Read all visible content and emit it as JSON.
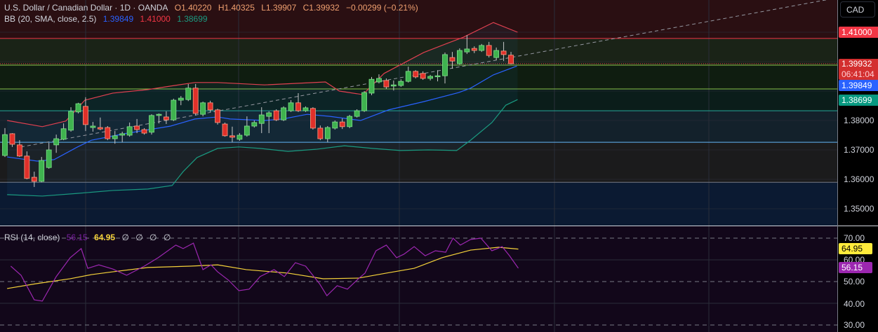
{
  "header": {
    "symbol": "U.S. Dollar / Canadian Dollar · 1D · OANDA",
    "open": "O1.40220",
    "high": "H1.40325",
    "low": "L1.39907",
    "close": "C1.39932",
    "change": "−0.00299 (−0.21%)"
  },
  "bb": {
    "label": "BB (20, SMA, close, 2.5)",
    "basis": "1.39849",
    "upper": "1.41000",
    "lower": "1.38699"
  },
  "rsi": {
    "label": "RSI (14, close)",
    "value": "56.15",
    "ma": "64.95",
    "extra": [
      "∅",
      "∅",
      "∅",
      "∅"
    ]
  },
  "currency_button": "CAD",
  "price_axis": {
    "ticks": [
      "1.35000",
      "1.36000",
      "1.37000",
      "1.38000"
    ],
    "tag_upper": "1.41000",
    "tag_last": "1.39932",
    "countdown": "06:41:04",
    "tag_basis": "1.39849",
    "tag_lower": "1.38699"
  },
  "rsi_axis": {
    "ticks": [
      "70.00",
      "60.00",
      "50.00",
      "40.00",
      "30.00"
    ],
    "tag_ma": "64.95",
    "tag_rsi": "56.15"
  },
  "colors": {
    "up": "#3fb34f",
    "down": "#e0302a",
    "upper": "#e04050",
    "basis": "#2962ff",
    "lower": "#1a9a80",
    "rsi": "#9c27b0",
    "rsi_ma": "#f5d23a"
  },
  "chart_data": [
    {
      "type": "candlestick",
      "title": "U.S. Dollar / Canadian Dollar · 1D · OANDA",
      "ylim": [
        1.343,
        1.421
      ],
      "yticks": [
        1.35,
        1.36,
        1.37,
        1.38,
        1.39,
        1.4,
        1.41
      ],
      "candles": [
        [
          1.3681,
          1.3774,
          1.3676,
          1.3752
        ],
        [
          1.3755,
          1.3757,
          1.371,
          1.3719
        ],
        [
          1.3717,
          1.3733,
          1.3676,
          1.3679
        ],
        [
          1.3679,
          1.3695,
          1.36,
          1.3603
        ],
        [
          1.3607,
          1.3626,
          1.3574,
          1.3593
        ],
        [
          1.3593,
          1.3676,
          1.359,
          1.3664
        ],
        [
          1.364,
          1.3724,
          1.3636,
          1.37
        ],
        [
          1.3717,
          1.3752,
          1.369,
          1.3738
        ],
        [
          1.3736,
          1.379,
          1.3733,
          1.3772
        ],
        [
          1.3767,
          1.3845,
          1.3762,
          1.3831
        ],
        [
          1.3829,
          1.386,
          1.3824,
          1.3857
        ],
        [
          1.3848,
          1.3879,
          1.3764,
          1.3786
        ],
        [
          1.3776,
          1.3795,
          1.3762,
          1.3781
        ],
        [
          1.3776,
          1.381,
          1.3767,
          1.3771
        ],
        [
          1.3776,
          1.3781,
          1.3733,
          1.3738
        ],
        [
          1.3738,
          1.3764,
          1.3721,
          1.3748
        ],
        [
          1.375,
          1.3762,
          1.3726,
          1.3755
        ],
        [
          1.375,
          1.3793,
          1.3745,
          1.3779
        ],
        [
          1.3781,
          1.3805,
          1.3757,
          1.3769
        ],
        [
          1.3769,
          1.3774,
          1.3752,
          1.3757
        ],
        [
          1.376,
          1.3821,
          1.3752,
          1.3817
        ],
        [
          1.3817,
          1.3824,
          1.379,
          1.3821
        ],
        [
          1.3812,
          1.3831,
          1.3788,
          1.3802
        ],
        [
          1.3802,
          1.3874,
          1.3798,
          1.3869
        ],
        [
          1.3869,
          1.3883,
          1.3852,
          1.3876
        ],
        [
          1.3871,
          1.3924,
          1.3866,
          1.391
        ],
        [
          1.391,
          1.3924,
          1.3817,
          1.3824
        ],
        [
          1.3821,
          1.3864,
          1.3814,
          1.386
        ],
        [
          1.386,
          1.3867,
          1.3829,
          1.3836
        ],
        [
          1.3836,
          1.384,
          1.3786,
          1.3793
        ],
        [
          1.3788,
          1.3793,
          1.3745,
          1.3748
        ],
        [
          1.3748,
          1.3779,
          1.3726,
          1.3743
        ],
        [
          1.3736,
          1.3757,
          1.3731,
          1.375
        ],
        [
          1.375,
          1.3814,
          1.3745,
          1.3781
        ],
        [
          1.3781,
          1.38,
          1.3776,
          1.3793
        ],
        [
          1.379,
          1.3845,
          1.3757,
          1.3819
        ],
        [
          1.3814,
          1.3831,
          1.3757,
          1.3826
        ],
        [
          1.3833,
          1.3838,
          1.3798,
          1.3802
        ],
        [
          1.3802,
          1.3848,
          1.3798,
          1.3843
        ],
        [
          1.3833,
          1.3869,
          1.3829,
          1.386
        ],
        [
          1.386,
          1.3893,
          1.3829,
          1.3833
        ],
        [
          1.3833,
          1.3848,
          1.3829,
          1.3843
        ],
        [
          1.3841,
          1.3845,
          1.3769,
          1.3774
        ],
        [
          1.3774,
          1.3783,
          1.3733,
          1.3738
        ],
        [
          1.3738,
          1.3781,
          1.3726,
          1.3776
        ],
        [
          1.3774,
          1.38,
          1.3769,
          1.3795
        ],
        [
          1.3795,
          1.3807,
          1.3771,
          1.3779
        ],
        [
          1.3779,
          1.3819,
          1.3774,
          1.3814
        ],
        [
          1.3814,
          1.3838,
          1.381,
          1.3833
        ],
        [
          1.3833,
          1.39,
          1.3829,
          1.3895
        ],
        [
          1.3893,
          1.3948,
          1.3886,
          1.394
        ],
        [
          1.3931,
          1.3957,
          1.3926,
          1.3943
        ],
        [
          1.3936,
          1.3943,
          1.3907,
          1.3914
        ],
        [
          1.3917,
          1.3936,
          1.3902,
          1.3921
        ],
        [
          1.3919,
          1.394,
          1.3914,
          1.3933
        ],
        [
          1.3933,
          1.3983,
          1.3929,
          1.3967
        ],
        [
          1.3967,
          1.3971,
          1.3943,
          1.3948
        ],
        [
          1.396,
          1.3967,
          1.3938,
          1.3943
        ],
        [
          1.3943,
          1.3955,
          1.3936,
          1.395
        ],
        [
          1.3952,
          1.3971,
          1.3933,
          1.3952
        ],
        [
          1.3952,
          1.4031,
          1.3926,
          1.4024
        ],
        [
          1.4014,
          1.4033,
          1.3976,
          1.4002
        ],
        [
          1.3993,
          1.4045,
          1.399,
          1.4038
        ],
        [
          1.4033,
          1.409,
          1.4026,
          1.4043
        ],
        [
          1.4045,
          1.4052,
          1.4029,
          1.4038
        ],
        [
          1.4038,
          1.406,
          1.4033,
          1.4055
        ],
        [
          1.4055,
          1.4067,
          1.4014,
          1.4021
        ],
        [
          1.4014,
          1.4048,
          1.4005,
          1.4038
        ],
        [
          1.4036,
          1.4067,
          1.4002,
          1.4024
        ],
        [
          1.4022,
          1.4033,
          1.3991,
          1.3993
        ]
      ],
      "bb_upper": [
        [
          1.3,
          1.38
        ],
        [
          6.1,
          1.3779
        ],
        [
          9.3,
          1.3798
        ],
        [
          11.9,
          1.3869
        ],
        [
          15.7,
          1.3893
        ],
        [
          20.5,
          1.3905
        ],
        [
          23.6,
          1.3917
        ],
        [
          26.9,
          1.3929
        ],
        [
          30,
          1.3929
        ],
        [
          36.4,
          1.3921
        ],
        [
          44.7,
          1.3931
        ],
        [
          46.6,
          1.39
        ],
        [
          49.8,
          1.3888
        ],
        [
          52.7,
          1.396
        ],
        [
          58.1,
          1.4031
        ],
        [
          61.3,
          1.4062
        ],
        [
          63.5,
          1.4083
        ],
        [
          67.6,
          1.4133
        ],
        [
          70.9,
          1.41
        ]
      ],
      "bb_basis": [
        [
          1.3,
          1.3676
        ],
        [
          5.4,
          1.3662
        ],
        [
          7.7,
          1.3667
        ],
        [
          10.9,
          1.371
        ],
        [
          12.8,
          1.3733
        ],
        [
          17.3,
          1.3755
        ],
        [
          23.6,
          1.3781
        ],
        [
          26.9,
          1.3805
        ],
        [
          30,
          1.3812
        ],
        [
          31.7,
          1.3805
        ],
        [
          36.4,
          1.38
        ],
        [
          38.9,
          1.3805
        ],
        [
          42.2,
          1.3821
        ],
        [
          45.3,
          1.3814
        ],
        [
          49.5,
          1.38
        ],
        [
          53.3,
          1.3836
        ],
        [
          58.1,
          1.3864
        ],
        [
          62.9,
          1.3895
        ],
        [
          64.5,
          1.391
        ],
        [
          67.6,
          1.3955
        ],
        [
          70.8,
          1.3985
        ]
      ],
      "bb_lower": [
        [
          1.3,
          1.3548
        ],
        [
          6.1,
          1.3543
        ],
        [
          10.9,
          1.3552
        ],
        [
          15.7,
          1.3562
        ],
        [
          20.5,
          1.3567
        ],
        [
          23.8,
          1.3579
        ],
        [
          25.3,
          1.3626
        ],
        [
          27.2,
          1.3674
        ],
        [
          30,
          1.3705
        ],
        [
          32.9,
          1.371
        ],
        [
          35.8,
          1.3705
        ],
        [
          39.6,
          1.3695
        ],
        [
          43.4,
          1.3702
        ],
        [
          47.3,
          1.3714
        ],
        [
          51.1,
          1.3705
        ],
        [
          54.9,
          1.3698
        ],
        [
          58.7,
          1.37
        ],
        [
          62.6,
          1.3698
        ],
        [
          64.5,
          1.3733
        ],
        [
          67.4,
          1.3793
        ],
        [
          69.3,
          1.3852
        ],
        [
          70.9,
          1.3871
        ]
      ],
      "trendline": [
        [
          3.2,
          1.371
        ],
        [
          113,
          1.421
        ]
      ],
      "levels": [
        1.4079,
        1.3988,
        1.3907,
        1.3833,
        1.3726,
        1.359
      ]
    },
    {
      "type": "line",
      "title": "RSI (14, close)",
      "ylim": [
        28,
        74
      ],
      "yticks": [
        30,
        40,
        50,
        60,
        70
      ],
      "rsi": [
        [
          1.8,
          57.1
        ],
        [
          3.2,
          52.9
        ],
        [
          5,
          41.6
        ],
        [
          6.1,
          41.0
        ],
        [
          8,
          52.3
        ],
        [
          9.9,
          61.0
        ],
        [
          11.4,
          65.2
        ],
        [
          12.3,
          56.1
        ],
        [
          13.8,
          57.7
        ],
        [
          15.7,
          55.8
        ],
        [
          17.6,
          52.9
        ],
        [
          20,
          57.1
        ],
        [
          21.9,
          61.0
        ],
        [
          24.3,
          66.8
        ],
        [
          25.3,
          65.2
        ],
        [
          26.7,
          67.7
        ],
        [
          28,
          55.5
        ],
        [
          29.1,
          57.7
        ],
        [
          30,
          54.5
        ],
        [
          31.5,
          50.6
        ],
        [
          32.9,
          45.8
        ],
        [
          34.3,
          46.5
        ],
        [
          35.8,
          52.3
        ],
        [
          37.7,
          55.5
        ],
        [
          39.1,
          52.3
        ],
        [
          40.6,
          58.7
        ],
        [
          42,
          57.1
        ],
        [
          43.9,
          49.0
        ],
        [
          44.9,
          43.5
        ],
        [
          46.3,
          48.1
        ],
        [
          47.7,
          46.5
        ],
        [
          49.2,
          51.3
        ],
        [
          50.1,
          53.9
        ],
        [
          51.6,
          64.2
        ],
        [
          53,
          66.8
        ],
        [
          54.4,
          61.0
        ],
        [
          55.4,
          62.6
        ],
        [
          56.8,
          66.1
        ],
        [
          58.3,
          61.9
        ],
        [
          59.7,
          64.2
        ],
        [
          61.1,
          63.5
        ],
        [
          62.1,
          70.0
        ],
        [
          63.1,
          66.8
        ],
        [
          64.5,
          69.4
        ],
        [
          65.9,
          70.0
        ],
        [
          67.4,
          64.2
        ],
        [
          68.8,
          66.1
        ],
        [
          69.8,
          61.9
        ],
        [
          71,
          56.15
        ]
      ],
      "rsi_ma": [
        [
          1.3,
          46.8
        ],
        [
          5.2,
          49.0
        ],
        [
          9.9,
          51.3
        ],
        [
          12.8,
          53.2
        ],
        [
          15.7,
          54.5
        ],
        [
          20.5,
          56.5
        ],
        [
          26.2,
          57.1
        ],
        [
          30,
          57.7
        ],
        [
          33.9,
          55.5
        ],
        [
          39.6,
          53.9
        ],
        [
          44.4,
          51.3
        ],
        [
          49.2,
          51.6
        ],
        [
          53,
          53.9
        ],
        [
          56.8,
          56.1
        ],
        [
          60.6,
          61.0
        ],
        [
          64.5,
          64.5
        ],
        [
          68.3,
          65.8
        ],
        [
          71,
          64.95
        ]
      ]
    }
  ]
}
